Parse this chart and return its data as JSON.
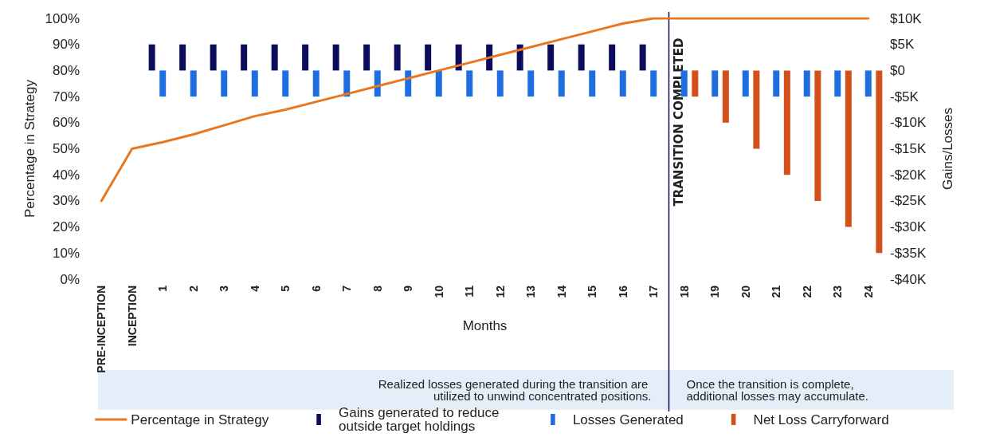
{
  "chart_data": {
    "type": "bar",
    "xlabel": "Months",
    "ylabel": "Percentage in Strategy",
    "y2label": "Gains/Losses",
    "categories": [
      "PRE-INCEPTION",
      "INCEPTION",
      "1",
      "2",
      "3",
      "4",
      "5",
      "6",
      "7",
      "8",
      "9",
      "10",
      "11",
      "12",
      "13",
      "14",
      "15",
      "16",
      "17",
      "18",
      "19",
      "20",
      "21",
      "22",
      "23",
      "24"
    ],
    "series": [
      {
        "name": "Percentage in Strategy",
        "type": "line",
        "color": "#e87722",
        "values": [
          30,
          50,
          52.5,
          55.5,
          59,
          62.5,
          65,
          68,
          71,
          74,
          77,
          80,
          83,
          86,
          89,
          92,
          95,
          98,
          100,
          100,
          100,
          100,
          100,
          100,
          100,
          100
        ]
      },
      {
        "name": "Gains generated to reduce outside target holdings",
        "axis": "y2",
        "color": "#0b0c5c",
        "values": [
          null,
          null,
          5000,
          5000,
          5000,
          5000,
          5000,
          5000,
          5000,
          5000,
          5000,
          5000,
          5000,
          5000,
          5000,
          5000,
          5000,
          5000,
          5000,
          null,
          null,
          null,
          null,
          null,
          null,
          null
        ]
      },
      {
        "name": "Losses Generated",
        "axis": "y2",
        "color": "#1f6ee0",
        "values": [
          null,
          null,
          -5000,
          -5000,
          -5000,
          -5000,
          -5000,
          -5000,
          -5000,
          -5000,
          -5000,
          -5000,
          -5000,
          -5000,
          -5000,
          -5000,
          -5000,
          -5000,
          -5000,
          -5000,
          -5000,
          -5000,
          -5000,
          -5000,
          -5000,
          -5000
        ]
      },
      {
        "name": "Net Loss Carryforward",
        "axis": "y2",
        "color": "#d4501a",
        "values": [
          null,
          null,
          null,
          null,
          null,
          null,
          null,
          null,
          null,
          null,
          null,
          null,
          null,
          null,
          null,
          null,
          null,
          null,
          null,
          -5000,
          -10000,
          -15000,
          -20000,
          -25000,
          -30000,
          -35000
        ]
      }
    ],
    "ylim": [
      0,
      100
    ],
    "yticks": [
      {
        "value": 0,
        "label": "0%"
      },
      {
        "value": 10,
        "label": "10%"
      },
      {
        "value": 20,
        "label": "20%"
      },
      {
        "value": 30,
        "label": "30%"
      },
      {
        "value": 40,
        "label": "40%"
      },
      {
        "value": 50,
        "label": "50%"
      },
      {
        "value": 60,
        "label": "60%"
      },
      {
        "value": 70,
        "label": "70%"
      },
      {
        "value": 80,
        "label": "80%"
      },
      {
        "value": 90,
        "label": "90%"
      },
      {
        "value": 100,
        "label": "100%"
      }
    ],
    "y2lim": [
      -40000,
      10000
    ],
    "y2ticks": [
      {
        "value": -40000,
        "label": "-$40K"
      },
      {
        "value": -35000,
        "label": "-$35K"
      },
      {
        "value": -30000,
        "label": "-$30K"
      },
      {
        "value": -25000,
        "label": "-$25K"
      },
      {
        "value": -20000,
        "label": "-$20K"
      },
      {
        "value": -15000,
        "label": "-$15K"
      },
      {
        "value": -10000,
        "label": "-$10K"
      },
      {
        "value": -5000,
        "label": "-$5K"
      },
      {
        "value": 0,
        "label": "$0"
      },
      {
        "value": 5000,
        "label": "$5K"
      },
      {
        "value": 10000,
        "label": "$10K"
      }
    ],
    "ref_lines": [
      {
        "axis": "x",
        "value": "17",
        "label": "TRANSITION COMPLETED",
        "color": "#0b0c5c"
      }
    ],
    "annotations": [
      "Realized losses generated during the transition are utilized to unwind concentrated positions.",
      "Once the transition is complete, additional losses may accumulate."
    ],
    "grid": false,
    "legend": "bottom",
    "marker": "none",
    "line_style": "solid"
  }
}
